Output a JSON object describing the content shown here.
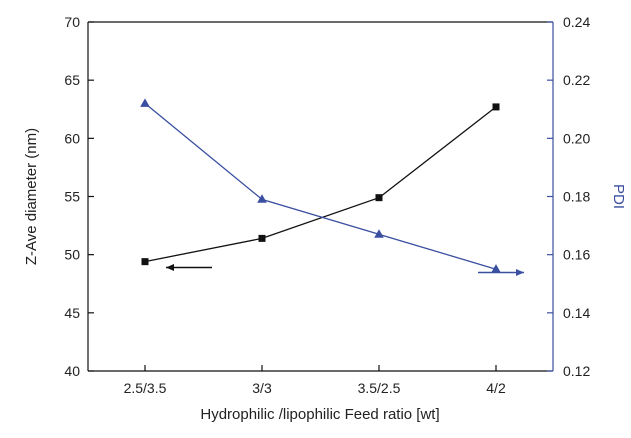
{
  "chart_data": {
    "type": "line",
    "categories": [
      "2.5/3.5",
      "3/3",
      "3.5/2.5",
      "4/2"
    ],
    "xlabel": "Hydrophilic /lipophilic Feed ratio [wt]",
    "ylabel_left": "Z-Ave diameter (nm)",
    "ylabel_right": "PDI",
    "ylim_left": [
      40,
      70
    ],
    "yticks_left": [
      40,
      45,
      50,
      55,
      60,
      65,
      70
    ],
    "ytick_labels_left": [
      "40",
      "45",
      "50",
      "55",
      "60",
      "65",
      "70"
    ],
    "ylim_right": [
      0.12,
      0.24
    ],
    "yticks_right": [
      0.12,
      0.14,
      0.16,
      0.18,
      0.2,
      0.22,
      0.24
    ],
    "ytick_labels_right": [
      "0.12",
      "0.14",
      "0.16",
      "0.18",
      "0.20",
      "0.22",
      "0.24"
    ],
    "grid": false,
    "series": [
      {
        "axis": "left",
        "marker": "square",
        "color": "#111111",
        "values": [
          49.4,
          51.4,
          54.9,
          62.7
        ]
      },
      {
        "axis": "right",
        "marker": "triangle",
        "color": "#3a4fa0",
        "values": [
          0.212,
          0.179,
          0.167,
          0.155
        ]
      }
    ],
    "annotations": [
      {
        "type": "arrow",
        "direction": "left",
        "points_to_axis": "left",
        "color": "#111111"
      },
      {
        "type": "arrow",
        "direction": "right",
        "points_to_axis": "right",
        "color": "#3a4fa0"
      }
    ]
  }
}
